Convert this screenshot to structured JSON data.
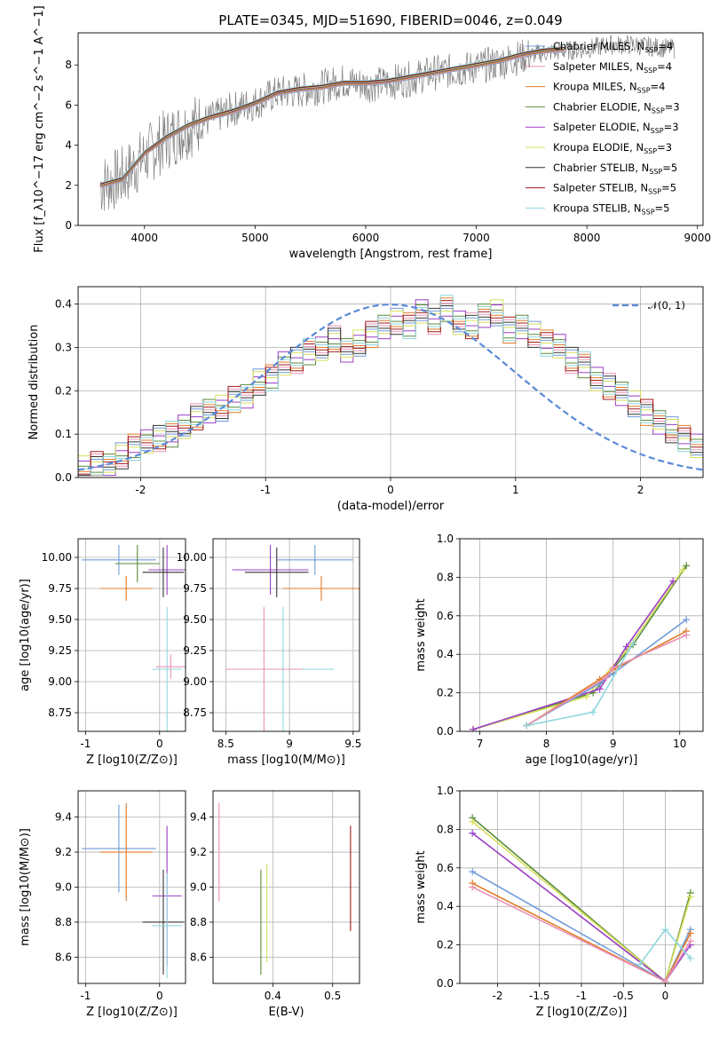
{
  "title": "PLATE=0345, MJD=51690, FIBERID=0046, z=0.049",
  "colors": {
    "chabrier_miles": "#6f9bd8",
    "salpeter_miles": "#e993b5",
    "kroupa_miles": "#e07b27",
    "chabrier_elodie": "#5b8c3a",
    "salpeter_elodie": "#9b3fc4",
    "kroupa_elodie": "#d7df5b",
    "chabrier_stelib": "#333333",
    "salpeter_stelib": "#a01818",
    "kroupa_stelib": "#8ed6de",
    "data": "#808080",
    "gauss": "#5b8ad8"
  },
  "chart_data": [
    {
      "id": "spectrum",
      "type": "line",
      "xlabel": "wavelength [Angstrom, rest frame]",
      "ylabel": "Flux [f_λ10^−17 erg cm^−2 s^−1 A^−1]",
      "xlim": [
        3400,
        9050
      ],
      "ylim": [
        0,
        9.6
      ],
      "xticks": [
        4000,
        5000,
        6000,
        7000,
        8000,
        9000
      ],
      "yticks": [
        0,
        2,
        4,
        6,
        8
      ],
      "legend_loc": "upper-right",
      "series": [
        {
          "name": "Chabrier MILES, N_SSP=4"
        },
        {
          "name": "Salpeter MILES, N_SSP=4"
        },
        {
          "name": "Kroupa MILES, N_SSP=4"
        },
        {
          "name": "Chabrier ELODIE, N_SSP=3"
        },
        {
          "name": "Salpeter ELODIE, N_SSP=3"
        },
        {
          "name": "Kroupa ELODIE, N_SSP=3"
        },
        {
          "name": "Chabrier STELIB, N_SSP=5"
        },
        {
          "name": "Salpeter STELIB, N_SSP=5"
        },
        {
          "name": "Kroupa STELIB, N_SSP=5"
        }
      ],
      "data_x": [
        3600,
        3800,
        4000,
        4200,
        4400,
        4600,
        4800,
        5000,
        5200,
        5400,
        5600,
        5800,
        6000,
        6200,
        6400,
        6600,
        6800,
        7000,
        7200,
        7400,
        7600,
        7800,
        8000,
        8200,
        8400,
        8600,
        8800
      ],
      "data_y": [
        2.0,
        2.4,
        3.4,
        4.3,
        4.9,
        5.3,
        5.8,
        6.1,
        6.6,
        6.7,
        6.9,
        7.2,
        7.0,
        7.1,
        7.3,
        7.6,
        7.7,
        7.9,
        8.1,
        8.4,
        8.6,
        8.7,
        8.8,
        9.0,
        9.0,
        8.9,
        8.8
      ],
      "model_x": [
        3600,
        3800,
        4000,
        4200,
        4400,
        4600,
        4800,
        5000,
        5200,
        5400,
        5600,
        5800,
        6000,
        6200,
        6400,
        6600,
        6800,
        7000,
        7200,
        7400,
        7600,
        7800
      ],
      "model_y": [
        2.0,
        2.3,
        3.6,
        4.4,
        5.0,
        5.4,
        5.7,
        6.1,
        6.6,
        6.8,
        6.9,
        7.1,
        7.1,
        7.2,
        7.4,
        7.6,
        7.8,
        8.0,
        8.2,
        8.5,
        8.7,
        8.8
      ]
    },
    {
      "id": "residuals",
      "type": "line",
      "xlabel": "(data-model)/error",
      "ylabel": "Normed distribution",
      "xlim": [
        -2.5,
        2.5
      ],
      "ylim": [
        0,
        0.44
      ],
      "xticks": [
        -2,
        -1,
        0,
        1,
        2
      ],
      "yticks": [
        0.0,
        0.1,
        0.2,
        0.3,
        0.4
      ],
      "grid": true,
      "legend": "𝒩(0, 1)",
      "legend_loc": "upper-right",
      "bin_width": 0.1,
      "hist": [
        0.02,
        0.03,
        0.03,
        0.05,
        0.07,
        0.08,
        0.09,
        0.1,
        0.12,
        0.14,
        0.15,
        0.16,
        0.18,
        0.19,
        0.22,
        0.23,
        0.26,
        0.27,
        0.29,
        0.3,
        0.32,
        0.29,
        0.31,
        0.33,
        0.35,
        0.36,
        0.35,
        0.38,
        0.36,
        0.39,
        0.36,
        0.35,
        0.37,
        0.38,
        0.34,
        0.35,
        0.33,
        0.31,
        0.3,
        0.27,
        0.26,
        0.23,
        0.21,
        0.19,
        0.17,
        0.15,
        0.13,
        0.11,
        0.09,
        0.07,
        0.05
      ]
    },
    {
      "id": "age_vs_Z",
      "type": "scatter",
      "xlabel": "Z [log10(Z/Z⊙)]",
      "ylabel": "age  [log10(age/yr)]",
      "xlim": [
        -1.1,
        0.35
      ],
      "ylim": [
        8.6,
        10.15
      ],
      "xticks": [
        -1,
        0
      ],
      "yticks": [
        8.75,
        9.0,
        9.25,
        9.5,
        9.75,
        10.0
      ],
      "points": [
        {
          "x": -0.55,
          "y": 9.98,
          "xerr": 0.5,
          "yerr": 0.12
        },
        {
          "x": -0.45,
          "y": 9.75,
          "xerr": 0.35,
          "yerr": 0.1
        },
        {
          "x": 0.1,
          "y": 9.9,
          "xerr": 0.25,
          "yerr": 0.2
        },
        {
          "x": 0.05,
          "y": 9.88,
          "xerr": 0.28,
          "yerr": 0.2
        },
        {
          "x": 0.1,
          "y": 9.1,
          "xerr": 0.2,
          "yerr": 0.5
        },
        {
          "x": 0.15,
          "y": 9.12,
          "xerr": 0.2,
          "yerr": 0.1
        },
        {
          "x": -0.3,
          "y": 9.95,
          "xerr": 0.3,
          "yerr": 0.15
        }
      ]
    },
    {
      "id": "age_vs_mass",
      "type": "scatter",
      "xlabel": "mass [log10(M/M⊙)]",
      "ylabel": "",
      "xlim": [
        8.4,
        9.55
      ],
      "ylim": [
        8.6,
        10.15
      ],
      "xticks": [
        8.5,
        9.0,
        9.5
      ],
      "yticks": [
        8.75,
        9.0,
        9.25,
        9.5,
        9.75,
        10.0
      ],
      "points": [
        {
          "x": 9.2,
          "y": 9.98,
          "xerr": 0.3,
          "yerr": 0.12
        },
        {
          "x": 9.25,
          "y": 9.75,
          "xerr": 0.3,
          "yerr": 0.1
        },
        {
          "x": 8.85,
          "y": 9.9,
          "xerr": 0.3,
          "yerr": 0.2
        },
        {
          "x": 8.9,
          "y": 9.88,
          "xerr": 0.25,
          "yerr": 0.2
        },
        {
          "x": 8.95,
          "y": 9.1,
          "xerr": 0.4,
          "yerr": 0.5
        },
        {
          "x": 8.8,
          "y": 9.1,
          "xerr": 0.3,
          "yerr": 0.5
        }
      ]
    },
    {
      "id": "mw_vs_age",
      "type": "line",
      "xlabel": "age  [log10(age/yr)]",
      "ylabel": "mass weight",
      "xlim": [
        6.7,
        10.35
      ],
      "ylim": [
        0,
        1.0
      ],
      "xticks": [
        7,
        8,
        9,
        10
      ],
      "yticks": [
        0.0,
        0.2,
        0.4,
        0.6,
        0.8,
        1.0
      ],
      "grid": true,
      "series": [
        {
          "x": [
            6.9,
            8.7,
            9.3,
            10.1
          ],
          "y": [
            0.01,
            0.2,
            0.45,
            0.86
          ]
        },
        {
          "x": [
            6.9,
            8.6,
            9.2,
            10.05
          ],
          "y": [
            0.01,
            0.18,
            0.42,
            0.84
          ]
        },
        {
          "x": [
            6.9,
            8.8,
            9.2,
            9.9
          ],
          "y": [
            0.01,
            0.22,
            0.44,
            0.78
          ]
        },
        {
          "x": [
            7.7,
            8.8,
            9.0,
            10.1
          ],
          "y": [
            0.03,
            0.25,
            0.3,
            0.58
          ]
        },
        {
          "x": [
            7.7,
            8.8,
            9.0,
            10.1
          ],
          "y": [
            0.03,
            0.27,
            0.32,
            0.52
          ]
        },
        {
          "x": [
            7.7,
            8.9,
            9.0,
            10.1
          ],
          "y": [
            0.03,
            0.28,
            0.33,
            0.5
          ]
        },
        {
          "x": [
            7.7,
            8.7,
            9.3
          ],
          "y": [
            0.03,
            0.1,
            0.46
          ]
        }
      ]
    },
    {
      "id": "mass_vs_Z",
      "type": "scatter",
      "xlabel": "Z [log10(Z/Z⊙)]",
      "ylabel": "mass [log10(M/M⊙)]",
      "xlim": [
        -1.1,
        0.35
      ],
      "ylim": [
        8.45,
        9.55
      ],
      "xticks": [
        -1,
        0
      ],
      "yticks": [
        8.6,
        8.8,
        9.0,
        9.2,
        9.4
      ],
      "points": [
        {
          "x": -0.55,
          "y": 9.22,
          "xerr": 0.5,
          "yerr": 0.25
        },
        {
          "x": -0.45,
          "y": 9.2,
          "xerr": 0.35,
          "yerr": 0.28
        },
        {
          "x": 0.1,
          "y": 8.95,
          "xerr": 0.2,
          "yerr": 0.4
        },
        {
          "x": 0.05,
          "y": 8.8,
          "xerr": 0.28,
          "yerr": 0.3
        },
        {
          "x": 0.1,
          "y": 8.78,
          "xerr": 0.2,
          "yerr": 0.3
        }
      ]
    },
    {
      "id": "ebv",
      "type": "scatter",
      "xlabel": "E(B-V)",
      "ylabel": "",
      "xlim": [
        0.3,
        0.545
      ],
      "ylim": [
        8.45,
        9.55
      ],
      "xticks": [
        0.4,
        0.5
      ],
      "yticks": [
        8.6,
        8.8,
        9.0,
        9.2,
        9.4
      ],
      "points": [
        {
          "x": 0.31,
          "y": 9.2,
          "yerr": 0.28
        },
        {
          "x": 0.38,
          "y": 8.8,
          "yerr": 0.3
        },
        {
          "x": 0.39,
          "y": 8.85,
          "yerr": 0.28
        },
        {
          "x": 0.53,
          "y": 9.05,
          "yerr": 0.3
        }
      ]
    },
    {
      "id": "mw_vs_Z",
      "type": "line",
      "xlabel": "Z [log10(Z/Z⊙)]",
      "ylabel": "mass weight",
      "xlim": [
        -2.45,
        0.45
      ],
      "ylim": [
        0,
        1.0
      ],
      "xticks": [
        -2.0,
        -1.5,
        -1.0,
        -0.5,
        0.0
      ],
      "yticks": [
        0.0,
        0.2,
        0.4,
        0.6,
        0.8,
        1.0
      ],
      "grid": true,
      "series": [
        {
          "x": [
            -2.3,
            0.0,
            0.3
          ],
          "y": [
            0.86,
            0.01,
            0.47
          ]
        },
        {
          "x": [
            -2.3,
            0.0,
            0.3
          ],
          "y": [
            0.84,
            0.01,
            0.45
          ]
        },
        {
          "x": [
            -2.3,
            0.0,
            0.3
          ],
          "y": [
            0.78,
            0.01,
            0.2
          ]
        },
        {
          "x": [
            -2.3,
            0.0,
            0.3
          ],
          "y": [
            0.58,
            0.01,
            0.28
          ]
        },
        {
          "x": [
            -2.3,
            0.0,
            0.3
          ],
          "y": [
            0.52,
            0.01,
            0.26
          ]
        },
        {
          "x": [
            -2.3,
            0.0,
            0.3
          ],
          "y": [
            0.5,
            0.01,
            0.22
          ]
        },
        {
          "x": [
            -0.3,
            0.0,
            0.3
          ],
          "y": [
            0.1,
            0.28,
            0.13
          ]
        }
      ]
    }
  ]
}
